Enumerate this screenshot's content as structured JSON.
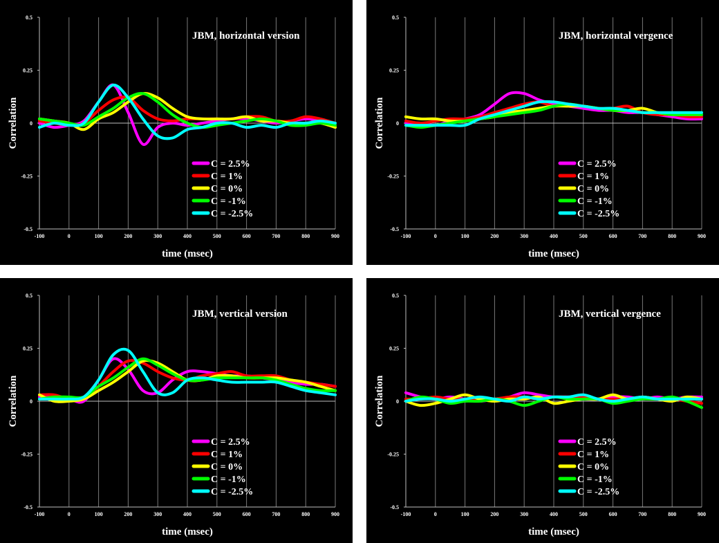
{
  "chart_data": [
    {
      "type": "line",
      "title": "JBM, horizontal version",
      "xlabel": "time (msec)",
      "ylabel": "Correlation",
      "xlim": [
        -100,
        900
      ],
      "ylim": [
        -0.5,
        0.5
      ],
      "xticks": [
        "-100",
        "0",
        "100",
        "200",
        "300",
        "400",
        "500",
        "600",
        "700",
        "800",
        "900"
      ],
      "yticks": [
        "0.5",
        "0.25",
        "0",
        "-0.25",
        "-0.5"
      ],
      "grid": "vertical",
      "legend": "center-bottom",
      "x": [
        -100,
        -50,
        0,
        50,
        100,
        150,
        200,
        250,
        300,
        350,
        400,
        450,
        500,
        550,
        600,
        650,
        700,
        750,
        800,
        850,
        900
      ],
      "series": [
        {
          "name": "C =  2.5%",
          "color": "#ff00ff",
          "values": [
            0.0,
            -0.02,
            -0.01,
            0.01,
            0.1,
            0.18,
            0.05,
            -0.1,
            -0.02,
            0.0,
            -0.01,
            0.0,
            0.01,
            0.02,
            0.02,
            0.01,
            0.0,
            0.01,
            0.02,
            0.01,
            -0.01
          ]
        },
        {
          "name": "C =  1%",
          "color": "#ff0000",
          "values": [
            0.01,
            0.0,
            -0.01,
            0.0,
            0.06,
            0.11,
            0.12,
            0.06,
            0.02,
            0.01,
            0.02,
            0.02,
            0.02,
            0.02,
            0.03,
            0.03,
            0.01,
            0.01,
            0.03,
            0.02,
            0.0
          ]
        },
        {
          "name": "C =  0%",
          "color": "#ffff00",
          "values": [
            0.02,
            0.01,
            0.0,
            -0.03,
            0.02,
            0.05,
            0.1,
            0.14,
            0.12,
            0.07,
            0.03,
            0.02,
            0.02,
            0.02,
            0.03,
            0.01,
            0.01,
            0.0,
            0.0,
            0.0,
            -0.02
          ]
        },
        {
          "name": "C = -1%",
          "color": "#00ff00",
          "values": [
            0.02,
            0.01,
            0.0,
            -0.01,
            0.03,
            0.07,
            0.12,
            0.14,
            0.1,
            0.04,
            0.0,
            -0.02,
            -0.01,
            0.0,
            0.01,
            0.02,
            0.01,
            -0.01,
            -0.01,
            0.0,
            -0.01
          ]
        },
        {
          "name": "C = -2.5%",
          "color": "#00ffff",
          "values": [
            -0.02,
            0.0,
            -0.01,
            0.0,
            0.1,
            0.18,
            0.12,
            0.02,
            -0.06,
            -0.07,
            -0.03,
            -0.02,
            0.0,
            0.0,
            -0.02,
            -0.01,
            -0.02,
            0.0,
            0.0,
            0.01,
            0.0
          ]
        }
      ]
    },
    {
      "type": "line",
      "title": "JBM, horizontal vergence",
      "xlabel": "time (msec)",
      "ylabel": "Correlation",
      "xlim": [
        -100,
        900
      ],
      "ylim": [
        -0.5,
        0.5
      ],
      "xticks": [
        "-100",
        "0",
        "100",
        "200",
        "300",
        "400",
        "500",
        "600",
        "700",
        "800",
        "900"
      ],
      "yticks": [
        "0.5",
        "0.25",
        "0",
        "-0.25",
        "-0.5"
      ],
      "grid": "vertical",
      "legend": "center-bottom",
      "x": [
        -100,
        -50,
        0,
        50,
        100,
        150,
        200,
        250,
        300,
        350,
        400,
        450,
        500,
        550,
        600,
        650,
        700,
        750,
        800,
        850,
        900
      ],
      "series": [
        {
          "name": "C =  2.5%",
          "color": "#ff00ff",
          "values": [
            0.0,
            0.0,
            -0.01,
            0.01,
            0.02,
            0.04,
            0.09,
            0.14,
            0.14,
            0.11,
            0.09,
            0.08,
            0.07,
            0.06,
            0.06,
            0.05,
            0.05,
            0.04,
            0.03,
            0.02,
            0.02
          ]
        },
        {
          "name": "C =  1%",
          "color": "#ff0000",
          "values": [
            0.01,
            0.0,
            0.01,
            0.02,
            0.02,
            0.03,
            0.05,
            0.07,
            0.09,
            0.1,
            0.08,
            0.09,
            0.08,
            0.07,
            0.07,
            0.08,
            0.05,
            0.04,
            0.04,
            0.03,
            0.03
          ]
        },
        {
          "name": "C =  0%",
          "color": "#ffff00",
          "values": [
            0.03,
            0.02,
            0.02,
            0.01,
            0.01,
            0.02,
            0.03,
            0.05,
            0.06,
            0.07,
            0.08,
            0.08,
            0.08,
            0.07,
            0.06,
            0.06,
            0.07,
            0.05,
            0.04,
            0.04,
            0.04
          ]
        },
        {
          "name": "C = -1%",
          "color": "#00ff00",
          "values": [
            -0.01,
            -0.02,
            -0.01,
            0.0,
            0.01,
            0.02,
            0.03,
            0.04,
            0.05,
            0.06,
            0.08,
            0.09,
            0.08,
            0.07,
            0.06,
            0.06,
            0.05,
            0.05,
            0.04,
            0.04,
            0.04
          ]
        },
        {
          "name": "C = -2.5%",
          "color": "#00ffff",
          "values": [
            -0.01,
            -0.01,
            -0.01,
            -0.01,
            -0.01,
            0.02,
            0.04,
            0.06,
            0.08,
            0.1,
            0.1,
            0.09,
            0.08,
            0.07,
            0.07,
            0.06,
            0.05,
            0.05,
            0.05,
            0.05,
            0.05
          ]
        }
      ]
    },
    {
      "type": "line",
      "title": "JBM, vertical version",
      "xlabel": "time (msec)",
      "ylabel": "Correlation",
      "xlim": [
        -100,
        900
      ],
      "ylim": [
        -0.5,
        0.5
      ],
      "xticks": [
        "-100",
        "0",
        "100",
        "200",
        "300",
        "400",
        "500",
        "600",
        "700",
        "800",
        "900"
      ],
      "yticks": [
        "0.5",
        "0.25",
        "0",
        "-0.25",
        "-0.5"
      ],
      "grid": "vertical",
      "legend": "center-bottom",
      "x": [
        -100,
        -50,
        0,
        50,
        100,
        150,
        200,
        250,
        300,
        350,
        400,
        450,
        500,
        550,
        600,
        650,
        700,
        750,
        800,
        850,
        900
      ],
      "series": [
        {
          "name": "C =  2.5%",
          "color": "#ff00ff",
          "values": [
            0.02,
            0.02,
            0.01,
            0.0,
            0.1,
            0.2,
            0.15,
            0.05,
            0.04,
            0.1,
            0.14,
            0.14,
            0.13,
            0.12,
            0.12,
            0.11,
            0.1,
            0.09,
            0.08,
            0.08,
            0.07
          ]
        },
        {
          "name": "C =  1%",
          "color": "#ff0000",
          "values": [
            0.03,
            0.03,
            0.01,
            0.01,
            0.07,
            0.14,
            0.19,
            0.18,
            0.14,
            0.11,
            0.1,
            0.12,
            0.13,
            0.14,
            0.12,
            0.12,
            0.12,
            0.1,
            0.09,
            0.08,
            0.07
          ]
        },
        {
          "name": "C =  0%",
          "color": "#ffff00",
          "values": [
            0.03,
            0.0,
            0.0,
            0.01,
            0.05,
            0.09,
            0.14,
            0.19,
            0.18,
            0.14,
            0.1,
            0.1,
            0.12,
            0.12,
            0.11,
            0.11,
            0.11,
            0.1,
            0.09,
            0.07,
            0.05
          ]
        },
        {
          "name": "C = -1%",
          "color": "#00ff00",
          "values": [
            0.01,
            0.02,
            0.02,
            0.02,
            0.07,
            0.11,
            0.16,
            0.2,
            0.17,
            0.13,
            0.1,
            0.1,
            0.11,
            0.11,
            0.11,
            0.11,
            0.1,
            0.08,
            0.06,
            0.05,
            0.05
          ]
        },
        {
          "name": "C = -2.5%",
          "color": "#00ffff",
          "values": [
            0.01,
            0.01,
            0.01,
            0.02,
            0.1,
            0.22,
            0.24,
            0.14,
            0.04,
            0.04,
            0.1,
            0.11,
            0.1,
            0.09,
            0.09,
            0.09,
            0.09,
            0.07,
            0.05,
            0.04,
            0.03
          ]
        }
      ]
    },
    {
      "type": "line",
      "title": "JBM, vertical vergence",
      "xlabel": "time (msec)",
      "ylabel": "Correlation",
      "xlim": [
        -100,
        900
      ],
      "ylim": [
        -0.5,
        0.5
      ],
      "xticks": [
        "-100",
        "0",
        "100",
        "200",
        "300",
        "400",
        "500",
        "600",
        "700",
        "800",
        "900"
      ],
      "yticks": [
        "0.5",
        "0.25",
        "0",
        "-0.25",
        "-0.5"
      ],
      "grid": "vertical",
      "legend": "center-bottom",
      "x": [
        -100,
        -50,
        0,
        50,
        100,
        150,
        200,
        250,
        300,
        350,
        400,
        450,
        500,
        550,
        600,
        650,
        700,
        750,
        800,
        850,
        900
      ],
      "series": [
        {
          "name": "C =  2.5%",
          "color": "#ff00ff",
          "values": [
            0.04,
            0.02,
            0.01,
            0.02,
            0.01,
            0.0,
            0.01,
            0.02,
            0.04,
            0.03,
            0.02,
            0.02,
            0.01,
            0.01,
            0.02,
            0.02,
            0.01,
            0.02,
            0.01,
            0.02,
            0.02
          ]
        },
        {
          "name": "C =  1%",
          "color": "#ff0000",
          "values": [
            0.01,
            0.01,
            0.02,
            0.01,
            0.01,
            0.01,
            0.01,
            0.02,
            0.02,
            0.01,
            0.02,
            0.02,
            0.02,
            0.01,
            0.01,
            0.01,
            0.02,
            0.01,
            0.01,
            0.0,
            -0.01
          ]
        },
        {
          "name": "C =  0%",
          "color": "#ffff00",
          "values": [
            0.0,
            -0.02,
            -0.01,
            0.01,
            0.03,
            0.01,
            0.0,
            0.01,
            0.01,
            0.02,
            -0.01,
            0.0,
            0.01,
            0.01,
            0.03,
            0.01,
            0.02,
            0.01,
            0.0,
            0.02,
            0.01
          ]
        },
        {
          "name": "C = -1%",
          "color": "#00ff00",
          "values": [
            0.0,
            0.02,
            0.01,
            -0.01,
            0.0,
            0.0,
            0.01,
            0.0,
            -0.02,
            0.0,
            0.02,
            0.01,
            0.01,
            0.01,
            -0.01,
            0.0,
            0.01,
            0.01,
            0.02,
            0.0,
            -0.03
          ]
        },
        {
          "name": "C = -2.5%",
          "color": "#00ffff",
          "values": [
            0.0,
            0.01,
            0.01,
            0.0,
            0.01,
            0.02,
            0.01,
            0.0,
            0.02,
            0.01,
            0.02,
            0.02,
            0.03,
            0.01,
            0.0,
            0.01,
            0.02,
            0.01,
            0.01,
            0.01,
            0.01
          ]
        }
      ]
    }
  ]
}
